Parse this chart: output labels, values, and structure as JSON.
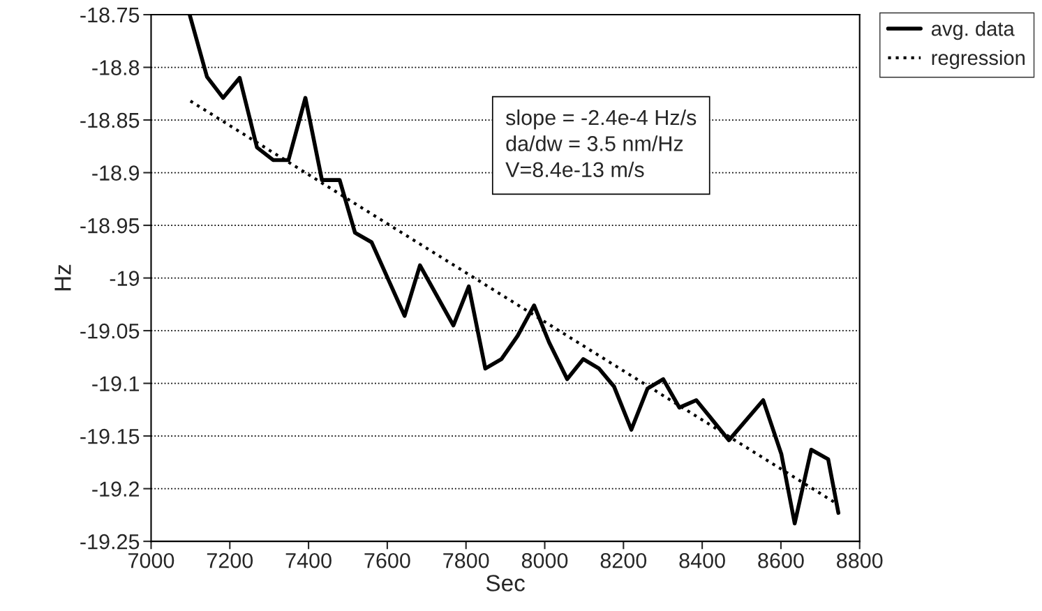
{
  "chart_data": {
    "type": "line",
    "xlabel": "Sec",
    "ylabel": "Hz",
    "series": [
      {
        "name": "avg. data",
        "color": "#000000",
        "line_style": "solid",
        "x": [
          7098,
          7142,
          7183,
          7225,
          7269,
          7310,
          7349,
          7392,
          7434,
          7479,
          7518,
          7560,
          7644,
          7683,
          7768,
          7807,
          7849,
          7890,
          7931,
          7973,
          8011,
          8057,
          8098,
          8138,
          8176,
          8220,
          8261,
          8301,
          8342,
          8385,
          8468,
          8555,
          8601,
          8635,
          8677,
          8720,
          8746
        ],
        "values": [
          -18.75,
          -18.809,
          -18.829,
          -18.81,
          -18.876,
          -18.888,
          -18.888,
          -18.829,
          -18.907,
          -18.907,
          -18.957,
          -18.966,
          -19.036,
          -18.988,
          -19.045,
          -19.008,
          -19.086,
          -19.077,
          -19.055,
          -19.026,
          -19.061,
          -19.096,
          -19.077,
          -19.086,
          -19.103,
          -19.144,
          -19.105,
          -19.096,
          -19.123,
          -19.116,
          -19.154,
          -19.116,
          -19.167,
          -19.233,
          -19.163,
          -19.172,
          -19.223
        ]
      },
      {
        "name": "regression",
        "color": "#000000",
        "line_style": "dotted",
        "x": [
          7100,
          8745
        ],
        "values": [
          -18.832,
          -19.215
        ]
      }
    ],
    "xlim": [
      7000,
      8800
    ],
    "xticks": [
      7000,
      7200,
      7400,
      7600,
      7800,
      8000,
      8200,
      8400,
      8600,
      8800
    ],
    "ylim": [
      -19.25,
      -18.75
    ],
    "yticks": [
      -19.25,
      -19.2,
      -19.15,
      -19.1,
      -19.05,
      -19,
      -18.95,
      -18.9,
      -18.85,
      -18.8,
      -18.75
    ],
    "grid": "y",
    "legend": "top right",
    "annotations": [
      "slope = -2.4e-4 Hz/s\nda/dw = 3.5 nm/Hz\nV=8.4e-13 m/s"
    ]
  }
}
